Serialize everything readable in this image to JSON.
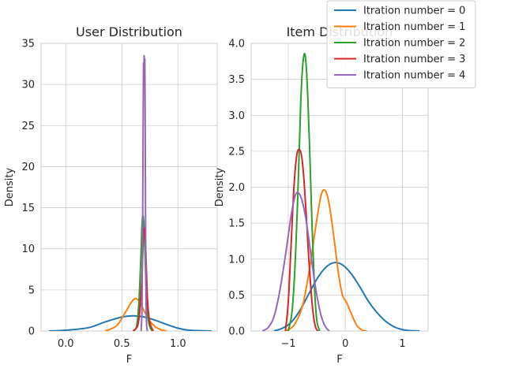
{
  "chart_data": [
    {
      "type": "line",
      "title": "User Distribution",
      "xlabel": "F",
      "ylabel": "Density",
      "xlim": [
        -0.22,
        1.35
      ],
      "ylim": [
        0,
        35
      ],
      "xticks": [
        0.0,
        0.5,
        1.0
      ],
      "xtick_labels": [
        "0.0",
        "0.5",
        "1.0"
      ],
      "yticks": [
        0,
        5,
        10,
        15,
        20,
        25,
        30,
        35
      ],
      "ytick_labels": [
        "0",
        "5",
        "10",
        "15",
        "20",
        "25",
        "30",
        "35"
      ],
      "grid": true,
      "series": [
        {
          "name": "Itration number = 0",
          "color": "#1f77b4",
          "x": [
            -0.15,
            0.0,
            0.2,
            0.35,
            0.5,
            0.6,
            0.7,
            0.8,
            0.9,
            1.0,
            1.1,
            1.3
          ],
          "y": [
            0.0,
            0.1,
            0.4,
            1.1,
            1.7,
            1.85,
            1.7,
            1.3,
            0.8,
            0.35,
            0.1,
            0.0
          ]
        },
        {
          "name": "Itration number = 1",
          "color": "#ff7f0e",
          "x": [
            0.35,
            0.45,
            0.52,
            0.58,
            0.62,
            0.66,
            0.7,
            0.75,
            0.8,
            0.85,
            0.9
          ],
          "y": [
            0.0,
            0.6,
            2.0,
            3.4,
            3.95,
            3.5,
            2.4,
            1.2,
            0.5,
            0.15,
            0.0
          ]
        },
        {
          "name": "Itration number = 2",
          "color": "#2ca02c",
          "x": [
            0.6,
            0.63,
            0.65,
            0.67,
            0.68,
            0.69,
            0.7,
            0.71,
            0.72,
            0.74,
            0.77
          ],
          "y": [
            0.0,
            0.5,
            3.0,
            9.0,
            13.0,
            14.0,
            12.0,
            8.0,
            4.0,
            1.0,
            0.0
          ]
        },
        {
          "name": "Itration number = 3",
          "color": "#d62728",
          "x": [
            0.6,
            0.64,
            0.66,
            0.68,
            0.69,
            0.7,
            0.71,
            0.72,
            0.73,
            0.75,
            0.78
          ],
          "y": [
            0.0,
            0.6,
            2.5,
            7.0,
            11.0,
            12.5,
            11.0,
            7.0,
            3.5,
            1.0,
            0.0
          ]
        },
        {
          "name": "Itration number = 4",
          "color": "#9467bd",
          "x": [
            0.672,
            0.68,
            0.685,
            0.69,
            0.693,
            0.696,
            0.699,
            0.702,
            0.705,
            0.708,
            0.711,
            0.715,
            0.72,
            0.728
          ],
          "y": [
            0.0,
            3.0,
            12.0,
            25.0,
            32.5,
            30.0,
            33.5,
            30.5,
            33.0,
            26.0,
            15.0,
            5.0,
            1.0,
            0.0
          ]
        }
      ]
    },
    {
      "type": "line",
      "title": "Item Distribution",
      "xlabel": "F",
      "ylabel": "Density",
      "xlim": [
        -1.65,
        1.45
      ],
      "ylim": [
        0,
        4.0
      ],
      "xticks": [
        -1,
        0,
        1
      ],
      "xtick_labels": [
        "−1",
        "0",
        "1"
      ],
      "yticks": [
        0.0,
        0.5,
        1.0,
        1.5,
        2.0,
        2.5,
        3.0,
        3.5,
        4.0
      ],
      "ytick_labels": [
        "0.0",
        "0.5",
        "1.0",
        "1.5",
        "2.0",
        "2.5",
        "3.0",
        "3.5",
        "4.0"
      ],
      "grid": true,
      "legend": "top-right",
      "series": [
        {
          "name": "Itration number = 0",
          "color": "#1f77b4",
          "x": [
            -1.25,
            -1.1,
            -0.95,
            -0.8,
            -0.65,
            -0.5,
            -0.35,
            -0.2,
            -0.05,
            0.1,
            0.25,
            0.4,
            0.55,
            0.7,
            0.85,
            1.0,
            1.15,
            1.3
          ],
          "y": [
            0.0,
            0.04,
            0.12,
            0.28,
            0.5,
            0.72,
            0.88,
            0.95,
            0.92,
            0.8,
            0.62,
            0.42,
            0.26,
            0.14,
            0.06,
            0.02,
            0.005,
            0.0
          ]
        },
        {
          "name": "Itration number = 1",
          "color": "#ff7f0e",
          "x": [
            -1.05,
            -0.9,
            -0.75,
            -0.62,
            -0.5,
            -0.42,
            -0.35,
            -0.28,
            -0.2,
            -0.12,
            -0.05,
            0.02,
            0.1,
            0.2,
            0.3,
            0.38
          ],
          "y": [
            0.0,
            0.08,
            0.35,
            0.9,
            1.55,
            1.9,
            1.95,
            1.75,
            1.3,
            0.8,
            0.5,
            0.4,
            0.25,
            0.08,
            0.01,
            0.0
          ]
        },
        {
          "name": "Itration number = 2",
          "color": "#2ca02c",
          "x": [
            -1.0,
            -0.93,
            -0.87,
            -0.82,
            -0.78,
            -0.74,
            -0.7,
            -0.66,
            -0.62,
            -0.58,
            -0.54,
            -0.5,
            -0.45
          ],
          "y": [
            0.0,
            0.3,
            1.1,
            2.2,
            3.2,
            3.75,
            3.82,
            3.3,
            2.4,
            1.4,
            0.6,
            0.15,
            0.0
          ]
        },
        {
          "name": "Itration number = 3",
          "color": "#d62728",
          "x": [
            -1.05,
            -1.0,
            -0.95,
            -0.9,
            -0.85,
            -0.8,
            -0.76,
            -0.72,
            -0.68,
            -0.64,
            -0.6,
            -0.56,
            -0.52,
            -0.48
          ],
          "y": [
            0.0,
            0.4,
            1.2,
            2.0,
            2.45,
            2.52,
            2.4,
            2.05,
            1.55,
            1.0,
            0.55,
            0.22,
            0.05,
            0.0
          ]
        },
        {
          "name": "Itration number = 4",
          "color": "#9467bd",
          "x": [
            -1.45,
            -1.35,
            -1.25,
            -1.15,
            -1.05,
            -0.95,
            -0.88,
            -0.82,
            -0.76,
            -0.7,
            -0.64,
            -0.58,
            -0.5,
            -0.42,
            -0.34,
            -0.28
          ],
          "y": [
            0.0,
            0.05,
            0.2,
            0.55,
            1.05,
            1.6,
            1.88,
            1.92,
            1.82,
            1.6,
            1.28,
            0.92,
            0.5,
            0.2,
            0.05,
            0.0
          ]
        }
      ]
    }
  ]
}
